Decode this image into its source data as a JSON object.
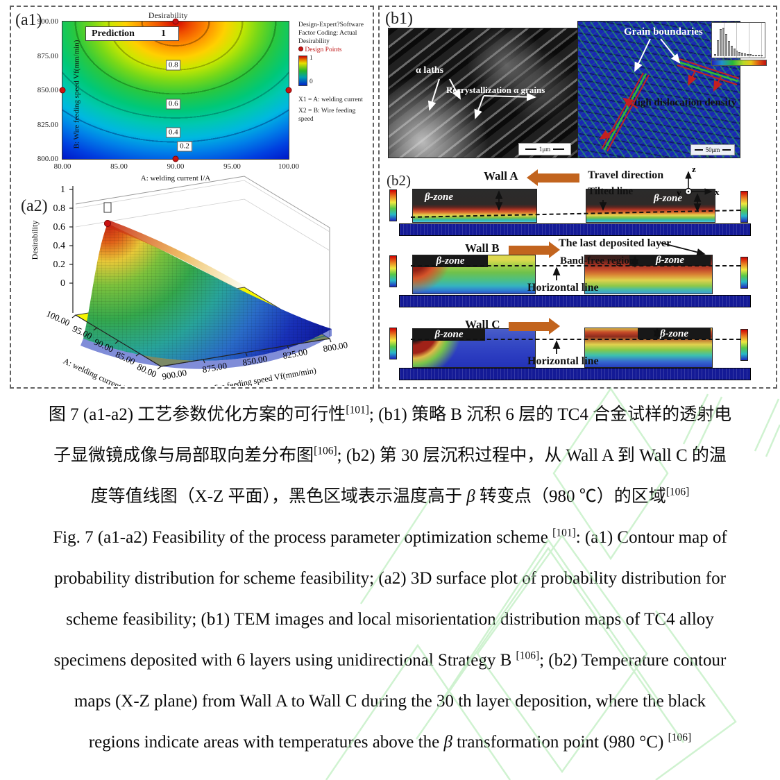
{
  "page": {
    "background": "#ffffff",
    "watermark_color": "#a9e9ab"
  },
  "panels": {
    "a1": {
      "label": "(a1)",
      "title": "Desirability",
      "prediction": {
        "label": "Prediction",
        "value": "1"
      },
      "x_axis": {
        "label": "A: welding current I/A",
        "ticks": [
          "80.00",
          "85.00",
          "90.00",
          "95.00",
          "100.00"
        ]
      },
      "y_axis": {
        "label": "B: Wire feeding speed Vf(mm/min)",
        "ticks": [
          "900.00",
          "875.00",
          "850.00",
          "825.00",
          "800.00"
        ]
      },
      "contour_labels": [
        "0.8",
        "0.6",
        "0.4",
        "0.2"
      ],
      "legend": {
        "software": "Design-Expert?Software",
        "coding": "Factor Coding: Actual",
        "response": "Desirability",
        "design_points": "Design Points",
        "cbar_max": "1",
        "cbar_min": "0",
        "x1": "X1 = A: welding current",
        "x2": "X2 = B: Wire feeding speed"
      }
    },
    "a2": {
      "label": "(a2)",
      "z_axis": {
        "label": "Desirability",
        "ticks": [
          "1",
          "0.8",
          "0.6",
          "0.4",
          "0.2",
          "0"
        ]
      },
      "a_axis": {
        "label": "A: welding current I/A",
        "ticks": [
          "100.00",
          "95.00",
          "90.00",
          "85.00",
          "80.00"
        ]
      },
      "b_axis": {
        "label": "B: Wire feeding speed Vf(mm/min)",
        "ticks": [
          "900.00",
          "875.00",
          "850.00",
          "825.00",
          "800.00"
        ]
      }
    },
    "b1": {
      "label": "(b1)",
      "tem": {
        "annotation_laths": "α  laths",
        "annotation_grains": "Recrystallization α grains",
        "scale_bar": "1μm"
      },
      "kam": {
        "annotation_gb": "Grain boundaries",
        "annotation_hdd": "High dislocation density",
        "scale_bar": "50μm"
      },
      "inset_bars": [
        0.06,
        0.55,
        0.95,
        1.0,
        0.78,
        0.52,
        0.36,
        0.25,
        0.17,
        0.12,
        0.09,
        0.07,
        0.05,
        0.04,
        0.03,
        0.025,
        0.02,
        0.015
      ]
    },
    "b2": {
      "label": "(b2)",
      "axes": {
        "x": "x",
        "y": "y",
        "z": "z"
      },
      "rows": [
        {
          "wall": "Wall A",
          "annotation": "Travel direction",
          "line_label": "Tilted line",
          "beta_left": "β-zone",
          "beta_right": "β-zone"
        },
        {
          "wall": "Wall B",
          "annotation": "The last deposited layer",
          "annotation2": "Band-free region",
          "line_label": "Horizontal line",
          "beta_left": "β-zone",
          "beta_right": "β-zone"
        },
        {
          "wall": "Wall C",
          "line_label": "Horizontal line",
          "beta_left": "β-zone",
          "beta_right": "β-zone"
        }
      ]
    }
  },
  "caption": {
    "lines": [
      [
        {
          "t": "图 7 (a1-a2)  工艺参数优化方案的可行性"
        },
        {
          "t": "[101]",
          "sup": true
        },
        {
          "t": "; (b1)  策略 B 沉积 6 层的 TC4 合金试样的透射电"
        }
      ],
      [
        {
          "t": "子显微镜成像与局部取向差分布图"
        },
        {
          "t": "[106]",
          "sup": true
        },
        {
          "t": "; (b2)  第 30 层沉积过程中，从 Wall A 到 Wall C 的温"
        }
      ],
      [
        {
          "t": "度等值线图（X-Z 平面），黑色区域表示温度高于 "
        },
        {
          "t": "β",
          "i": true
        },
        {
          "t": " 转变点（980 ℃）的区域"
        },
        {
          "t": "[106]",
          "sup": true
        }
      ],
      [
        {
          "t": "Fig. 7 (a1-a2) Feasibility of the process parameter optimization scheme "
        },
        {
          "t": "[101]",
          "sup": true
        },
        {
          "t": ": (a1) Contour map of"
        }
      ],
      [
        {
          "t": "probability distribution for scheme feasibility; (a2) 3D surface plot of probability distribution for"
        }
      ],
      [
        {
          "t": "scheme feasibility; (b1) TEM images and local misorientation distribution maps of TC4 alloy"
        }
      ],
      [
        {
          "t": "specimens deposited with 6 layers using unidirectional Strategy B "
        },
        {
          "t": "[106]",
          "sup": true
        },
        {
          "t": "; (b2) Temperature contour"
        }
      ],
      [
        {
          "t": "maps (X-Z plane) from Wall A to Wall C during the 30 th layer deposition, where the black"
        }
      ],
      [
        {
          "t": "regions indicate areas with temperatures above the "
        },
        {
          "t": "β",
          "i": true
        },
        {
          "t": " transformation point (980 °C) "
        },
        {
          "t": "[106]",
          "sup": true
        }
      ]
    ]
  },
  "chart_data": [
    {
      "type": "heatmap",
      "title": "Desirability",
      "xlabel": "A: welding current I/A",
      "ylabel": "B: Wire feeding speed Vf(mm/min)",
      "x_range": [
        80,
        100
      ],
      "y_range": [
        800,
        900
      ],
      "contour_levels": [
        0.2,
        0.4,
        0.6,
        0.8
      ],
      "colorbar_range": [
        0,
        1
      ],
      "prediction": 1,
      "design_points": [
        [
          80,
          850
        ],
        [
          100,
          850
        ],
        [
          90,
          800
        ],
        [
          90,
          900
        ]
      ],
      "legend_position": "right",
      "peak_location": {
        "x": 90,
        "y": 900
      }
    },
    {
      "type": "area",
      "subtype": "3d-surface",
      "zlabel": "Desirability",
      "xlabel": "A: welding current I/A",
      "ylabel": "B: Wire feeding speed Vf(mm/min)",
      "x_range": [
        80,
        100
      ],
      "y_range": [
        800,
        900
      ],
      "z_range": [
        0,
        1
      ],
      "z_ticks": [
        0,
        0.2,
        0.4,
        0.6,
        0.8,
        1
      ],
      "peak": {
        "A": 85,
        "B": 900,
        "desirability": 0.95
      },
      "floor_color": "#f7f700"
    }
  ]
}
